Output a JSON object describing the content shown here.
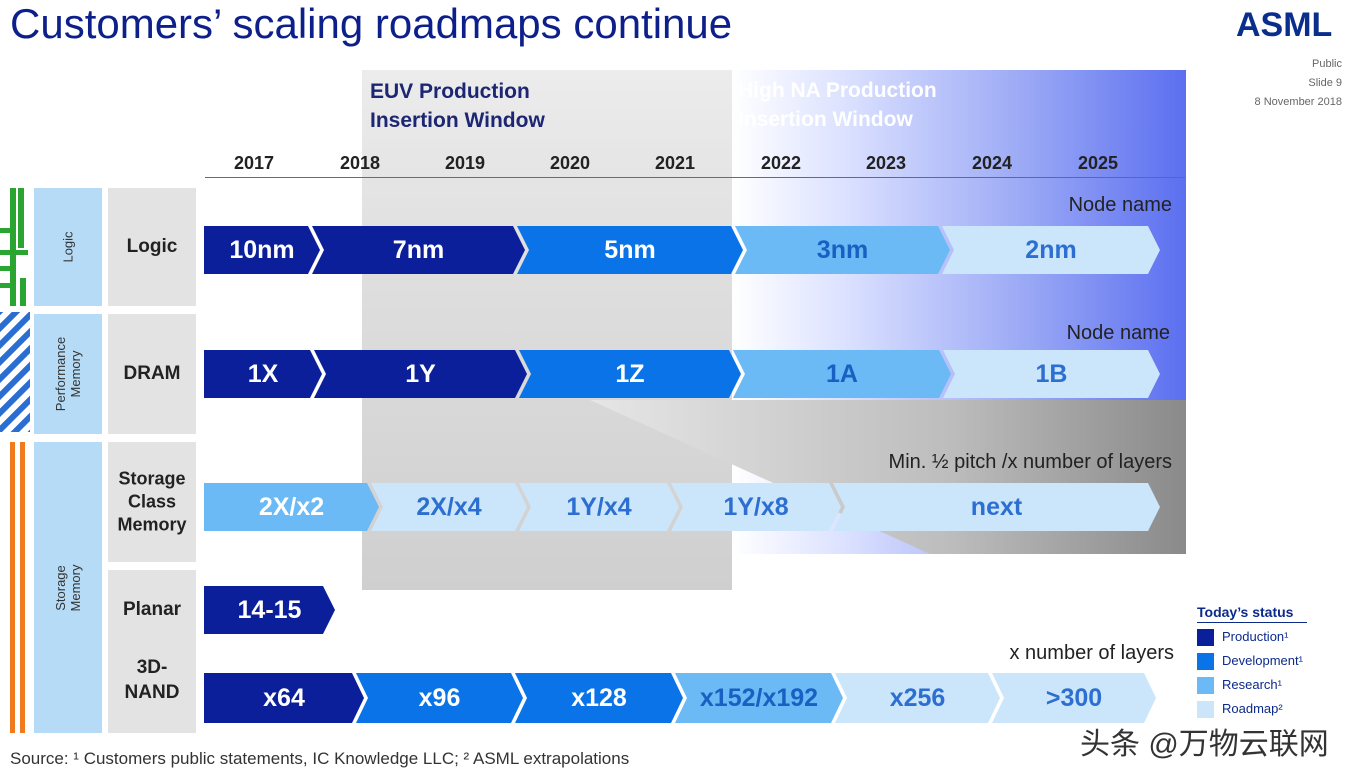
{
  "title": "Customers’ scaling roadmaps continue",
  "logo": "ASML",
  "meta": {
    "classification": "Public",
    "slide": "Slide 9",
    "date": "8 November 2018"
  },
  "windows": {
    "euv": [
      "EUV Production",
      "Insertion Window"
    ],
    "high_na": [
      "High NA Production",
      "Insertion Window"
    ]
  },
  "years": [
    "2017",
    "2018",
    "2019",
    "2020",
    "2021",
    "2022",
    "2023",
    "2024",
    "2025"
  ],
  "categories": {
    "logic_group": "Logic",
    "performance_group": [
      "Performance",
      "Memory"
    ],
    "storage_group": [
      "Storage",
      "Memory"
    ]
  },
  "rows": [
    {
      "label": [
        "Logic"
      ],
      "caption": "Node name",
      "segments": [
        {
          "text": "10nm",
          "status": "production"
        },
        {
          "text": "7nm",
          "status": "production"
        },
        {
          "text": "5nm",
          "status": "development"
        },
        {
          "text": "3nm",
          "status": "research"
        },
        {
          "text": "2nm",
          "status": "roadmap"
        }
      ]
    },
    {
      "label": [
        "DRAM"
      ],
      "caption": "Node name",
      "segments": [
        {
          "text": "1X",
          "status": "production"
        },
        {
          "text": "1Y",
          "status": "production"
        },
        {
          "text": "1Z",
          "status": "development"
        },
        {
          "text": "1A",
          "status": "research"
        },
        {
          "text": "1B",
          "status": "roadmap"
        }
      ]
    },
    {
      "label": [
        "Storage",
        "Class",
        "Memory"
      ],
      "caption": "Min. ½ pitch /x number of layers",
      "segments": [
        {
          "text": "2X/x2",
          "status": "research"
        },
        {
          "text": "2X/x4",
          "status": "roadmap"
        },
        {
          "text": "1Y/x4",
          "status": "roadmap"
        },
        {
          "text": "1Y/x8",
          "status": "roadmap"
        },
        {
          "text": "next",
          "status": "roadmap"
        }
      ]
    },
    {
      "label": [
        "Planar"
      ],
      "caption": "",
      "segments": [
        {
          "text": "14-15",
          "status": "production"
        }
      ]
    },
    {
      "label": [
        "3D-",
        "NAND"
      ],
      "caption": "x number of layers",
      "segments": [
        {
          "text": "x64",
          "status": "production"
        },
        {
          "text": "x96",
          "status": "development"
        },
        {
          "text": "x128",
          "status": "development"
        },
        {
          "text": "x152/x192",
          "status": "research"
        },
        {
          "text": "x256",
          "status": "roadmap"
        },
        {
          "text": ">300",
          "status": "roadmap"
        }
      ]
    }
  ],
  "legend": {
    "title": "Today’s status",
    "items": [
      {
        "label": "Production¹",
        "status": "production"
      },
      {
        "label": "Development¹",
        "status": "development"
      },
      {
        "label": "Research¹",
        "status": "research"
      },
      {
        "label": "Roadmap²",
        "status": "roadmap"
      }
    ]
  },
  "status_colors": {
    "production": "#0a1f99",
    "development": "#0b73e8",
    "research": "#6bb9f5",
    "roadmap": "#cbe6fb"
  },
  "source": "Source: ¹ Customers public statements, IC Knowledge LLC; ² ASML extrapolations",
  "watermark": "头条 @万物云联网"
}
